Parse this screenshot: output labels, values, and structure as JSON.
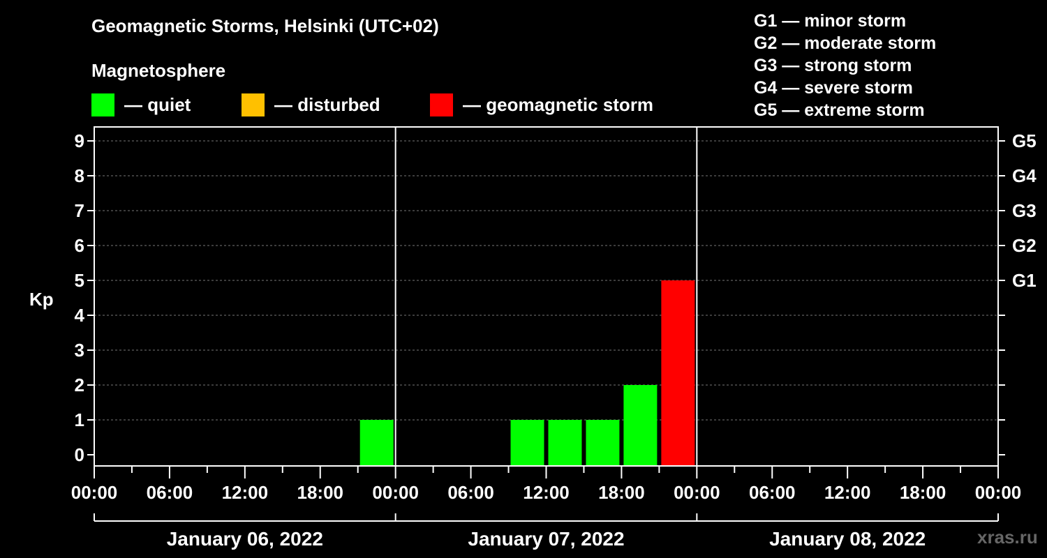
{
  "header": {
    "title": "Geomagnetic Storms, Helsinki (UTC+02)",
    "subtitle": "Magnetosphere"
  },
  "legend": [
    {
      "label": "— quiet",
      "color": "#00ff00"
    },
    {
      "label": "— disturbed",
      "color": "#ffc000"
    },
    {
      "label": "— geomagnetic storm",
      "color": "#ff0000"
    }
  ],
  "storm_levels": [
    "G1 — minor storm",
    "G2 — moderate storm",
    "G3 — strong storm",
    "G4 — severe storm",
    "G5 — extreme storm"
  ],
  "watermark": "xras.ru",
  "chart_data": {
    "type": "bar",
    "ylabel": "Kp",
    "ylim": [
      0,
      9
    ],
    "yticks": [
      "0",
      "1",
      "2",
      "3",
      "4",
      "5",
      "6",
      "7",
      "8",
      "9"
    ],
    "right_axis": [
      {
        "kp": 5,
        "label": "G1"
      },
      {
        "kp": 6,
        "label": "G2"
      },
      {
        "kp": 7,
        "label": "G3"
      },
      {
        "kp": 8,
        "label": "G4"
      },
      {
        "kp": 9,
        "label": "G5"
      }
    ],
    "x_range_hours": [
      0,
      72
    ],
    "xticks": [
      "00:00",
      "06:00",
      "12:00",
      "18:00",
      "00:00",
      "06:00",
      "12:00",
      "18:00",
      "00:00",
      "06:00",
      "12:00",
      "18:00",
      "00:00"
    ],
    "days": [
      "January 06, 2022",
      "January 07, 2022",
      "January 08, 2022"
    ],
    "grid": true,
    "bars": [
      {
        "day": "January 06, 2022",
        "time": "21:00",
        "kp": 1,
        "color": "#00ff00"
      },
      {
        "day": "January 07, 2022",
        "time": "09:00",
        "kp": 1,
        "color": "#00ff00"
      },
      {
        "day": "January 07, 2022",
        "time": "12:00",
        "kp": 1,
        "color": "#00ff00"
      },
      {
        "day": "January 07, 2022",
        "time": "15:00",
        "kp": 1,
        "color": "#00ff00"
      },
      {
        "day": "January 07, 2022",
        "time": "18:00",
        "kp": 2,
        "color": "#00ff00"
      },
      {
        "day": "January 07, 2022",
        "time": "21:00",
        "kp": 5,
        "color": "#ff0000"
      }
    ]
  }
}
